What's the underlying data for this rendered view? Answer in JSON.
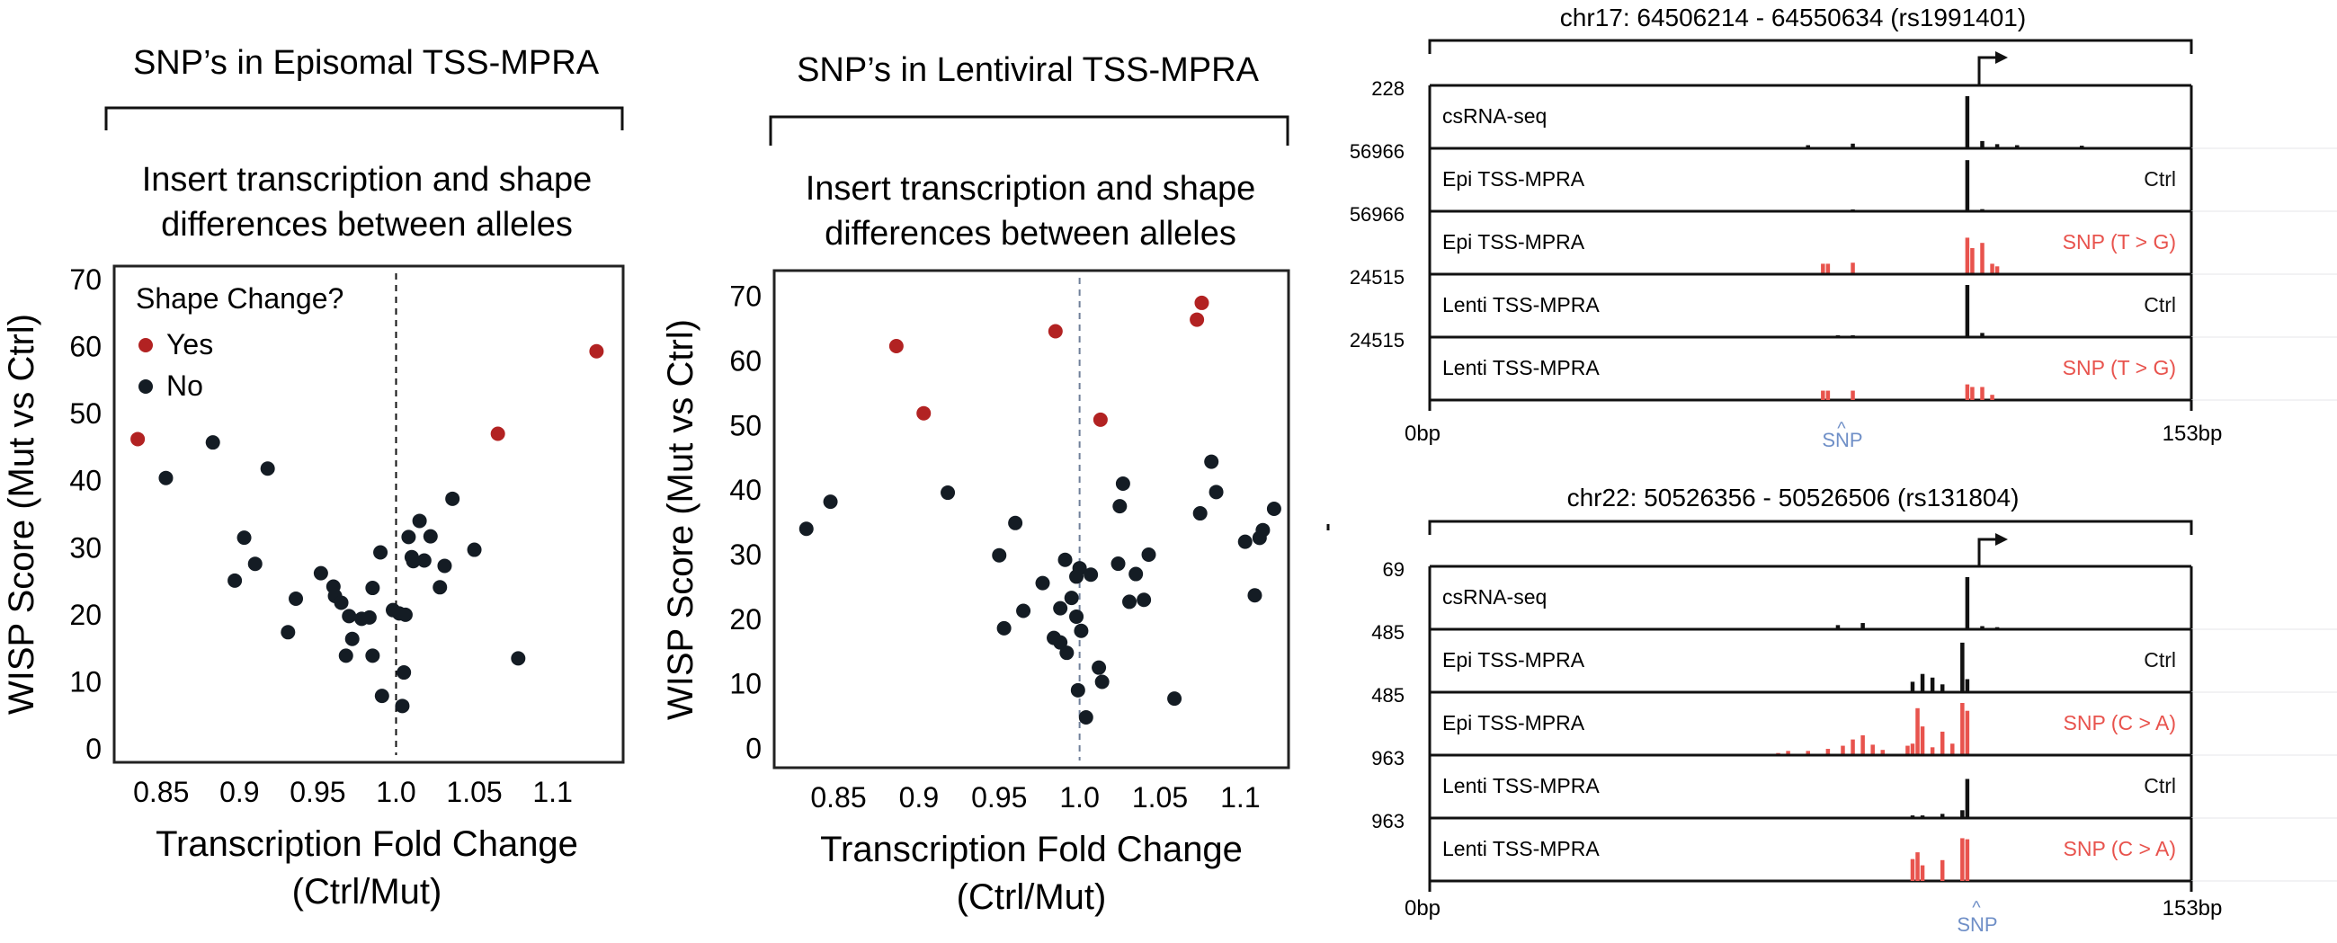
{
  "panel_a": {
    "title": "SNP’s in Episomal TSS-MPRA",
    "subtitle_1": "Insert transcription and shape",
    "subtitle_2": "differences between alleles",
    "legend_title": "Shape Change?",
    "legend_yes": "Yes",
    "legend_no": "No",
    "xlabel_1": "Transcription Fold Change",
    "xlabel_2": "(Ctrl/Mut)",
    "ylabel": "WISP Score (Mut vs Ctrl)"
  },
  "panel_b": {
    "title": "SNP’s in Lentiviral TSS-MPRA",
    "subtitle_1": "Insert transcription and shape",
    "subtitle_2": "differences between alleles",
    "xlabel_1": "Transcription Fold Change",
    "xlabel_2": "(Ctrl/Mut)",
    "ylabel": "WISP Score (Mut vs Ctrl)"
  },
  "browser_1": {
    "title": "chr17: 64506214 - 64550634 (rs1991401)",
    "x_start": "0bp",
    "x_end": "153bp",
    "snp_label": "SNP",
    "snp_caret": "^",
    "tracks": [
      {
        "label": "csRNA-seq",
        "scale": "228",
        "tag": ""
      },
      {
        "label": "Epi TSS-MPRA",
        "scale": "56966",
        "tag": "Ctrl"
      },
      {
        "label": "Epi TSS-MPRA",
        "scale": "56966",
        "tag": "SNP (T > G)"
      },
      {
        "label": "Lenti TSS-MPRA",
        "scale": "24515",
        "tag": "Ctrl"
      },
      {
        "label": "Lenti TSS-MPRA",
        "scale": "24515",
        "tag": "SNP (T > G)"
      }
    ]
  },
  "browser_2": {
    "title": "chr22: 50526356 - 50526506 (rs131804)",
    "x_start": "0bp",
    "x_end": "153bp",
    "snp_label": "SNP",
    "snp_caret": "^",
    "tracks": [
      {
        "label": "csRNA-seq",
        "scale": "69",
        "tag": ""
      },
      {
        "label": "Epi TSS-MPRA",
        "scale": "485",
        "tag": "Ctrl"
      },
      {
        "label": "Epi TSS-MPRA",
        "scale": "485",
        "tag": "SNP (C > A)"
      },
      {
        "label": "Lenti TSS-MPRA",
        "scale": "963",
        "tag": "Ctrl"
      },
      {
        "label": "Lenti TSS-MPRA",
        "scale": "963",
        "tag": "SNP (C > A)"
      }
    ]
  },
  "colors": {
    "yes": "#b22222",
    "no": "#141c24",
    "snp_track": "#e8534d",
    "snp_label": "#6f8fc7",
    "ink": "#111111"
  },
  "chart_data": [
    {
      "type": "scatter",
      "title": "SNP’s in Episomal TSS-MPRA",
      "xlabel": "Transcription Fold Change (Ctrl/Mut)",
      "ylabel": "WISP Score (Mut vs Ctrl)",
      "xlim": [
        0.82,
        1.145
      ],
      "ylim": [
        -2,
        72
      ],
      "xticks": [
        "0.85",
        "0.9",
        "0.95",
        "1.0",
        "1.05",
        "1.1"
      ],
      "xtick_values": [
        0.85,
        0.9,
        0.95,
        1.0,
        1.05,
        1.1
      ],
      "yticks": [
        "0",
        "10",
        "20",
        "30",
        "40",
        "50",
        "60",
        "70"
      ],
      "ytick_values": [
        0,
        10,
        20,
        30,
        40,
        50,
        60,
        70
      ],
      "reference_x": 1.0,
      "legend": "top-left",
      "series": [
        {
          "name": "Yes",
          "color": "#b22222",
          "points": [
            [
              0.835,
              46.2
            ],
            [
              1.065,
              47.0
            ],
            [
              1.128,
              59.3
            ]
          ]
        },
        {
          "name": "No",
          "color": "#141c24",
          "points": [
            [
              0.853,
              40.4
            ],
            [
              0.883,
              45.7
            ],
            [
              0.897,
              25.1
            ],
            [
              0.903,
              31.5
            ],
            [
              0.91,
              27.6
            ],
            [
              0.918,
              41.8
            ],
            [
              0.931,
              17.4
            ],
            [
              0.936,
              22.4
            ],
            [
              0.952,
              26.2
            ],
            [
              0.96,
              24.2
            ],
            [
              0.961,
              22.8
            ],
            [
              0.965,
              21.8
            ],
            [
              0.968,
              13.9
            ],
            [
              0.972,
              16.4
            ],
            [
              0.97,
              19.8
            ],
            [
              0.978,
              19.4
            ],
            [
              0.983,
              19.6
            ],
            [
              0.985,
              24.0
            ],
            [
              0.985,
              13.9
            ],
            [
              0.99,
              29.3
            ],
            [
              0.991,
              7.9
            ],
            [
              0.998,
              20.7
            ],
            [
              1.002,
              20.2
            ],
            [
              1.004,
              6.4
            ],
            [
              1.005,
              11.4
            ],
            [
              1.006,
              20.0
            ],
            [
              1.008,
              31.6
            ],
            [
              1.01,
              28.6
            ],
            [
              1.011,
              28.0
            ],
            [
              1.015,
              34.0
            ],
            [
              1.018,
              28.1
            ],
            [
              1.022,
              31.7
            ],
            [
              1.028,
              24.1
            ],
            [
              1.031,
              27.3
            ],
            [
              1.036,
              37.3
            ],
            [
              1.05,
              29.7
            ],
            [
              1.078,
              13.5
            ]
          ]
        }
      ]
    },
    {
      "type": "scatter",
      "title": "SNP’s in Lentiviral TSS-MPRA",
      "xlabel": "Transcription Fold Change (Ctrl/Mut)",
      "ylabel": "WISP Score (Mut vs Ctrl)",
      "xlim": [
        0.81,
        1.13
      ],
      "ylim": [
        -3,
        74
      ],
      "xticks": [
        "0.85",
        "0.9",
        "0.95",
        "1.0",
        "1.05",
        "1.1"
      ],
      "xtick_values": [
        0.85,
        0.9,
        0.95,
        1.0,
        1.05,
        1.1
      ],
      "yticks": [
        "0",
        "10",
        "20",
        "30",
        "40",
        "50",
        "60",
        "70"
      ],
      "ytick_values": [
        0,
        10,
        20,
        30,
        40,
        50,
        60,
        70
      ],
      "reference_x": 1.0,
      "series": [
        {
          "name": "Yes",
          "color": "#b22222",
          "points": [
            [
              0.886,
              62.3
            ],
            [
              0.903,
              51.9
            ],
            [
              0.985,
              64.6
            ],
            [
              1.013,
              50.9
            ],
            [
              1.073,
              66.4
            ],
            [
              1.076,
              69.0
            ]
          ]
        },
        {
          "name": "No",
          "color": "#141c24",
          "points": [
            [
              0.83,
              34.0
            ],
            [
              0.845,
              38.2
            ],
            [
              0.918,
              39.6
            ],
            [
              0.95,
              29.9
            ],
            [
              0.953,
              18.6
            ],
            [
              0.96,
              34.9
            ],
            [
              0.965,
              21.3
            ],
            [
              0.977,
              25.6
            ],
            [
              0.984,
              17.1
            ],
            [
              0.988,
              21.7
            ],
            [
              0.988,
              16.4
            ],
            [
              0.991,
              29.2
            ],
            [
              0.992,
              14.8
            ],
            [
              0.995,
              23.3
            ],
            [
              0.998,
              26.6
            ],
            [
              0.998,
              20.4
            ],
            [
              0.999,
              9.0
            ],
            [
              1.0,
              27.9
            ],
            [
              1.001,
              18.2
            ],
            [
              1.004,
              4.8
            ],
            [
              1.007,
              26.9
            ],
            [
              1.012,
              12.5
            ],
            [
              1.014,
              10.3
            ],
            [
              1.024,
              28.6
            ],
            [
              1.025,
              37.5
            ],
            [
              1.027,
              41.0
            ],
            [
              1.031,
              22.7
            ],
            [
              1.035,
              27.0
            ],
            [
              1.04,
              23.0
            ],
            [
              1.043,
              30.0
            ],
            [
              1.059,
              7.7
            ],
            [
              1.075,
              36.4
            ],
            [
              1.082,
              44.4
            ],
            [
              1.085,
              39.7
            ],
            [
              1.103,
              32.0
            ],
            [
              1.109,
              23.7
            ],
            [
              1.112,
              32.6
            ],
            [
              1.114,
              33.8
            ],
            [
              1.121,
              37.1
            ]
          ]
        }
      ]
    },
    {
      "type": "bar",
      "title": "chr17: 64506214 - 64550634 (rs1991401)",
      "x_range_bp": [
        0,
        153
      ],
      "snp_position_bp": 85,
      "tss_position_bp": 108,
      "tracks": [
        {
          "name": "csRNA-seq",
          "color": "#111111",
          "bars": [
            [
              76,
              0.06
            ],
            [
              85,
              0.09
            ],
            [
              108,
              1.0
            ],
            [
              111,
              0.14
            ],
            [
              114,
              0.08
            ],
            [
              118,
              0.06
            ],
            [
              131,
              0.05
            ]
          ]
        },
        {
          "name": "Epi TSS-MPRA Ctrl",
          "color": "#111111",
          "bars": [
            [
              85,
              0.03
            ],
            [
              108,
              0.98
            ],
            [
              111,
              0.04
            ]
          ]
        },
        {
          "name": "Epi TSS-MPRA SNP (T > G)",
          "color": "#e8534d",
          "bars": [
            [
              79,
              0.2
            ],
            [
              80,
              0.2
            ],
            [
              85,
              0.22
            ],
            [
              108,
              0.7
            ],
            [
              109,
              0.5
            ],
            [
              111,
              0.6
            ],
            [
              113,
              0.2
            ],
            [
              114,
              0.15
            ]
          ]
        },
        {
          "name": "Lenti TSS-MPRA Ctrl",
          "color": "#111111",
          "bars": [
            [
              82,
              0.03
            ],
            [
              85,
              0.03
            ],
            [
              108,
              1.0
            ],
            [
              111,
              0.08
            ]
          ]
        },
        {
          "name": "Lenti TSS-MPRA SNP (T > G)",
          "color": "#e8534d",
          "bars": [
            [
              79,
              0.18
            ],
            [
              80,
              0.18
            ],
            [
              85,
              0.18
            ],
            [
              108,
              0.3
            ],
            [
              109,
              0.25
            ],
            [
              111,
              0.25
            ],
            [
              113,
              0.1
            ]
          ]
        }
      ]
    },
    {
      "type": "bar",
      "title": "chr22: 50526356 - 50526506 (rs131804)",
      "x_range_bp": [
        0,
        153
      ],
      "snp_position_bp": 108,
      "tss_position_bp": 108,
      "tracks": [
        {
          "name": "csRNA-seq",
          "color": "#111111",
          "bars": [
            [
              82,
              0.08
            ],
            [
              87,
              0.12
            ],
            [
              108,
              1.0
            ],
            [
              111,
              0.06
            ],
            [
              114,
              0.04
            ]
          ]
        },
        {
          "name": "Epi TSS-MPRA Ctrl",
          "color": "#111111",
          "bars": [
            [
              97,
              0.2
            ],
            [
              99,
              0.35
            ],
            [
              101,
              0.28
            ],
            [
              103,
              0.15
            ],
            [
              107,
              0.95
            ],
            [
              108,
              0.25
            ]
          ]
        },
        {
          "name": "Epi TSS-MPRA SNP (C > A)",
          "color": "#e8534d",
          "bars": [
            [
              70,
              0.04
            ],
            [
              72,
              0.08
            ],
            [
              76,
              0.08
            ],
            [
              80,
              0.12
            ],
            [
              83,
              0.18
            ],
            [
              85,
              0.3
            ],
            [
              87,
              0.38
            ],
            [
              89,
              0.2
            ],
            [
              91,
              0.1
            ],
            [
              96,
              0.18
            ],
            [
              97,
              0.22
            ],
            [
              98,
              0.9
            ],
            [
              99,
              0.55
            ],
            [
              101,
              0.15
            ],
            [
              103,
              0.45
            ],
            [
              105,
              0.22
            ],
            [
              107,
              1.0
            ],
            [
              108,
              0.85
            ]
          ]
        },
        {
          "name": "Lenti TSS-MPRA Ctrl",
          "color": "#111111",
          "bars": [
            [
              97,
              0.05
            ],
            [
              99,
              0.05
            ],
            [
              103,
              0.08
            ],
            [
              107,
              0.15
            ],
            [
              108,
              0.75
            ]
          ]
        },
        {
          "name": "Lenti TSS-MPRA SNP (C > A)",
          "color": "#e8534d",
          "bars": [
            [
              97,
              0.42
            ],
            [
              98,
              0.55
            ],
            [
              99,
              0.3
            ],
            [
              103,
              0.4
            ],
            [
              107,
              0.82
            ],
            [
              108,
              0.8
            ]
          ]
        }
      ]
    }
  ]
}
